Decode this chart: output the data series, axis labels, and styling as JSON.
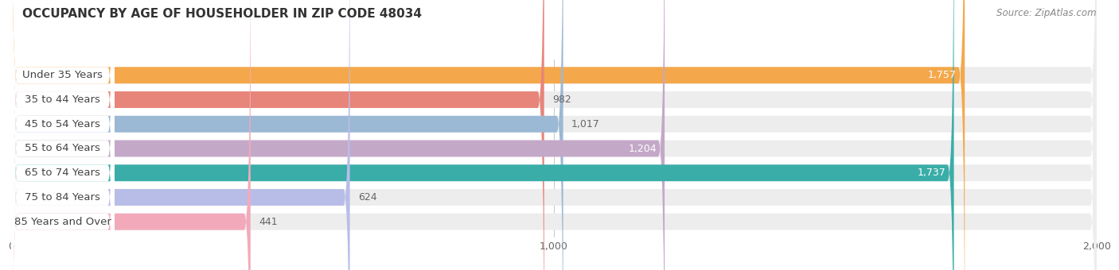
{
  "title": "OCCUPANCY BY AGE OF HOUSEHOLDER IN ZIP CODE 48034",
  "source": "Source: ZipAtlas.com",
  "categories": [
    "Under 35 Years",
    "35 to 44 Years",
    "45 to 54 Years",
    "55 to 64 Years",
    "65 to 74 Years",
    "75 to 84 Years",
    "85 Years and Over"
  ],
  "values": [
    1757,
    982,
    1017,
    1204,
    1737,
    624,
    441
  ],
  "bar_colors": [
    "#F5A84B",
    "#E8857A",
    "#9BB8D4",
    "#C4A8C8",
    "#3AADA8",
    "#B8BDE8",
    "#F2AABB"
  ],
  "bar_bg_color": "#EDEDED",
  "xlim": [
    0,
    2000
  ],
  "xticks": [
    0,
    1000,
    2000
  ],
  "label_fontsize": 9.5,
  "value_fontsize": 9,
  "title_fontsize": 11,
  "bar_height": 0.68,
  "background_color": "#FFFFFF",
  "grid_color": "#CCCCCC",
  "label_badge_color": "#FFFFFF",
  "label_text_color": "#444444"
}
